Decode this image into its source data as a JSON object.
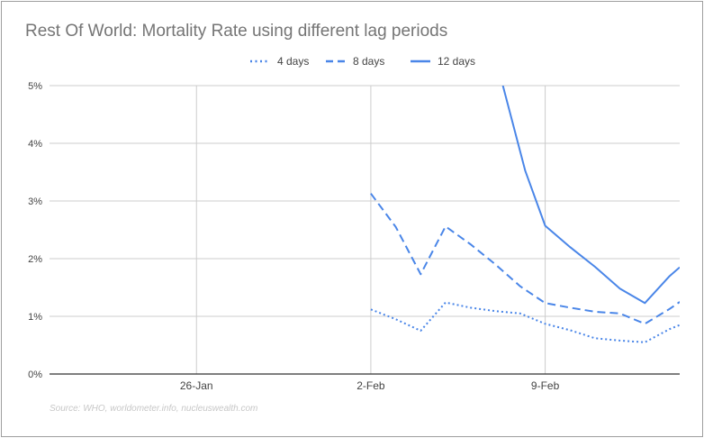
{
  "chart_data": {
    "type": "line",
    "title": "Rest Of World: Mortality Rate using different lag periods",
    "source": "Source: WHO, worldometer.info, nucleuswealth.com",
    "xlabel": "",
    "ylabel": "",
    "x": [
      0,
      1,
      2,
      3,
      4,
      5,
      6,
      7,
      8,
      9,
      10,
      11,
      12,
      13,
      14,
      15,
      16,
      17,
      18,
      19,
      20
    ],
    "x_ticks": [
      {
        "x": 5,
        "label": "26-Jan"
      },
      {
        "x": 12,
        "label": "2-Feb"
      },
      {
        "x": 19,
        "label": "9-Feb"
      }
    ],
    "xlim": [
      -0.9,
      24.4
    ],
    "y_ticks": [
      {
        "value": 0,
        "label": "0%"
      },
      {
        "value": 1,
        "label": "1%"
      },
      {
        "value": 2,
        "label": "2%"
      },
      {
        "value": 3,
        "label": "3%"
      },
      {
        "value": 4,
        "label": "4%"
      },
      {
        "value": 5,
        "label": "5%"
      }
    ],
    "ylim": [
      0,
      5
    ],
    "series": [
      {
        "name": "4 days",
        "style": "dotted",
        "color": "#4a86e8",
        "points": [
          [
            12,
            1.12
          ],
          [
            13,
            0.95
          ],
          [
            14,
            0.75
          ],
          [
            15,
            1.24
          ],
          [
            16,
            1.15
          ],
          [
            17,
            1.09
          ],
          [
            18,
            1.05
          ],
          [
            19,
            0.87
          ],
          [
            20,
            0.76
          ],
          [
            21,
            0.62
          ],
          [
            22,
            0.58
          ],
          [
            23,
            0.55
          ],
          [
            24,
            0.78
          ],
          [
            24.4,
            0.85
          ]
        ]
      },
      {
        "name": "8 days",
        "style": "dashed",
        "color": "#4a86e8",
        "points": [
          [
            12,
            3.13
          ],
          [
            13,
            2.55
          ],
          [
            14,
            1.73
          ],
          [
            15,
            2.56
          ],
          [
            16,
            2.25
          ],
          [
            17,
            1.9
          ],
          [
            18,
            1.52
          ],
          [
            19,
            1.23
          ],
          [
            20,
            1.15
          ],
          [
            21,
            1.08
          ],
          [
            22,
            1.05
          ],
          [
            23,
            0.87
          ],
          [
            24,
            1.13
          ],
          [
            24.4,
            1.25
          ]
        ]
      },
      {
        "name": "12 days",
        "style": "solid",
        "color": "#4a86e8",
        "points": [
          [
            17.3,
            5.0
          ],
          [
            18.2,
            3.52
          ],
          [
            19,
            2.57
          ],
          [
            20,
            2.2
          ],
          [
            21,
            1.86
          ],
          [
            22,
            1.48
          ],
          [
            23,
            1.23
          ],
          [
            24,
            1.7
          ],
          [
            24.4,
            1.85
          ]
        ]
      }
    ],
    "legend_position": "top-center",
    "grid": true
  }
}
